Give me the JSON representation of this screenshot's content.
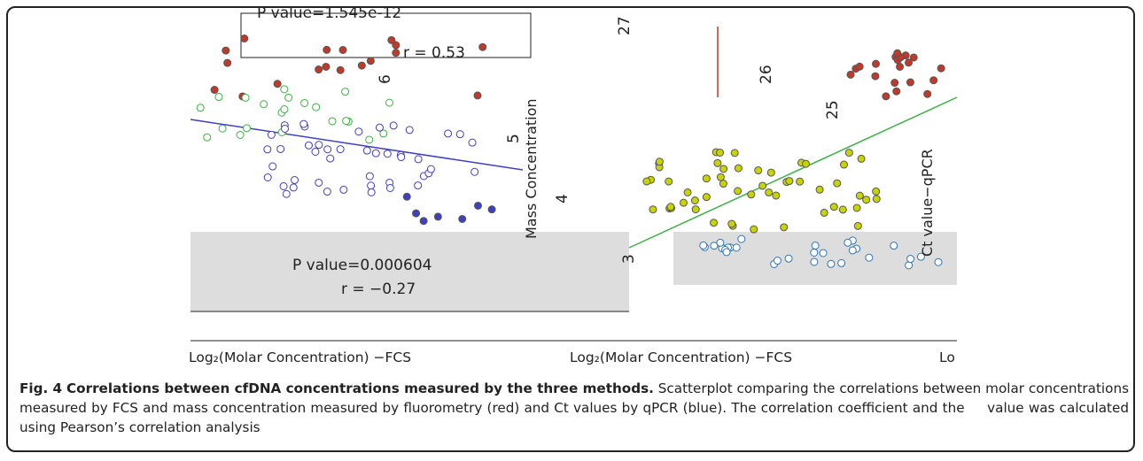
{
  "figure": {
    "stats": [
      "P value=1.545e-12",
      "r = 0.53",
      "P value=0.000604",
      "r = −0.27"
    ],
    "tick_labels": [
      "6",
      "5",
      "4",
      "3",
      "27",
      "26",
      "25"
    ],
    "axis_titles": [
      "Mass Concentration",
      "Ct value−qPCR",
      "Log₂(Molar Concentration) −FCS",
      "Log₂(Molar Concentration) −FCS",
      "Lo"
    ]
  },
  "caption": {
    "label": "Fig. 4",
    "title": "Correlations between cfDNA concentrations measured by the three methods.",
    "text": "Scatterplot comparing the correlations between molar concentrations measured by FCS and mass concentration measured by fluorometry (red) and Ct values by qPCR (blue). The correlation coefficient and the   value was calculated using Pearson’s correlation analysis"
  }
}
